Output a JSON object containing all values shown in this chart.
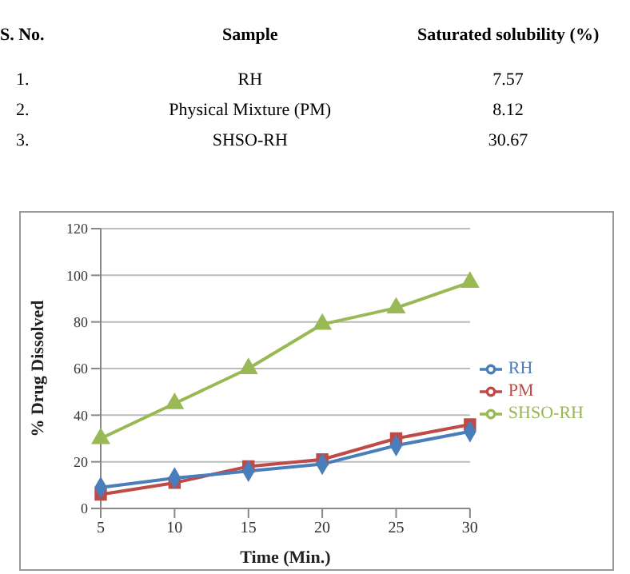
{
  "chart_data": [
    {
      "type": "other",
      "annotations": [
        "S. No.",
        "Sample",
        "Saturated solubility (%)",
        "1.",
        "RH",
        "7.57",
        "2.",
        "Physical Mixture (PM)",
        "8.12",
        "3.",
        "SHSO-RH",
        "30.67"
      ]
    },
    {
      "type": "line",
      "xlabel": "Time (Min.)",
      "ylabel": "% Drug Dissolved",
      "categories": [
        "5",
        "10",
        "15",
        "20",
        "25",
        "30"
      ],
      "series": [
        {
          "name": "RH",
          "color": "#4a7ebb",
          "marker": "diamond",
          "values": [
            9,
            13,
            16,
            19,
            27,
            33
          ]
        },
        {
          "name": "PM",
          "color": "#be4b48",
          "marker": "square",
          "values": [
            6,
            11,
            18,
            21,
            30,
            36
          ]
        },
        {
          "name": "SHSO-RH",
          "color": "#98b954",
          "marker": "triangle",
          "values": [
            30,
            45,
            60,
            79,
            86,
            97
          ]
        }
      ],
      "ylim": [
        0,
        120
      ],
      "yticks": [
        0,
        20,
        40,
        60,
        80,
        100,
        120
      ],
      "grid": "y",
      "legend": "right"
    }
  ]
}
